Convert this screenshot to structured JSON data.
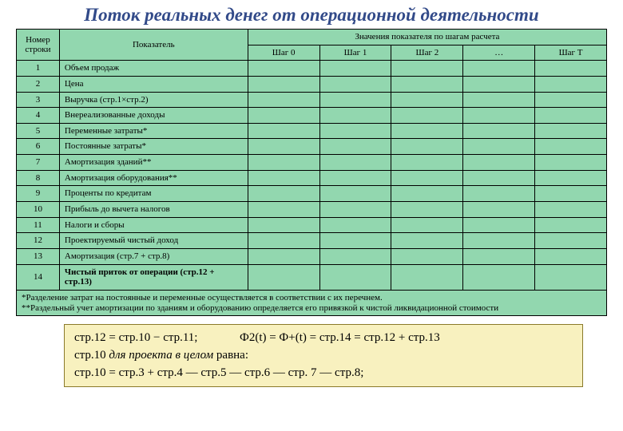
{
  "title": "Поток реальных денег от операционной деятельности",
  "table": {
    "background_color": "#92d7af",
    "border_color": "#000000",
    "columns": {
      "num_header_top": "Номер",
      "num_header_bottom": "строки",
      "ind_header": "Показатель",
      "group_header": "Значения показателя по шагам расчета",
      "steps": [
        "Шаг 0",
        "Шаг 1",
        "Шаг 2",
        "…",
        "Шаг T"
      ]
    },
    "rows": [
      {
        "n": "1",
        "label": "Объем продаж",
        "bold": false
      },
      {
        "n": "2",
        "label": "Цена",
        "bold": false
      },
      {
        "n": "3",
        "label": "Выручка (стр.1×стр.2)",
        "bold": false
      },
      {
        "n": "4",
        "label": "Внереализованные доходы",
        "bold": false
      },
      {
        "n": "5",
        "label": "Переменные затраты*",
        "bold": false
      },
      {
        "n": "6",
        "label": "Постоянные затраты*",
        "bold": false
      },
      {
        "n": "7",
        "label": "Амортизация зданий**",
        "bold": false
      },
      {
        "n": "8",
        "label": "Амортизация оборудования**",
        "bold": false
      },
      {
        "n": "9",
        "label": "Проценты по кредитам",
        "bold": false
      },
      {
        "n": "10",
        "label": "Прибыль до вычета налогов",
        "bold": false
      },
      {
        "n": "11",
        "label": "Налоги и сборы",
        "bold": false
      },
      {
        "n": "12",
        "label": "Проектируемый чистый доход",
        "bold": false
      },
      {
        "n": "13",
        "label": "Амортизация (стр.7 + стр.8)",
        "bold": false
      },
      {
        "n": "14",
        "label": "Чистый приток от операции (стр.12 + стр.13)",
        "bold": true
      }
    ],
    "footnote": "*Разделение затрат на постоянные и переменные осуществляется в соответствии с их перечнем.\n**Раздельный учет амортизации по зданиям и оборудованию определяется его привязкой к чистой ликвидационной стоимости"
  },
  "formula": {
    "background_color": "#f8f1bf",
    "border_color": "#8a7a2a",
    "line1_a": "стр.12 = стр.10 − стр.11;",
    "line1_b": "Ф2(t) = Ф+(t) = стр.14 = стр.12 + стр.13",
    "line2_a": "стр.10 ",
    "line2_b": "для проекта в целом",
    "line2_c": " равна:",
    "line3": "стр.10 = стр.3 + стр.4 — стр.5 — стр.6 — стр. 7 — стр.8;"
  }
}
